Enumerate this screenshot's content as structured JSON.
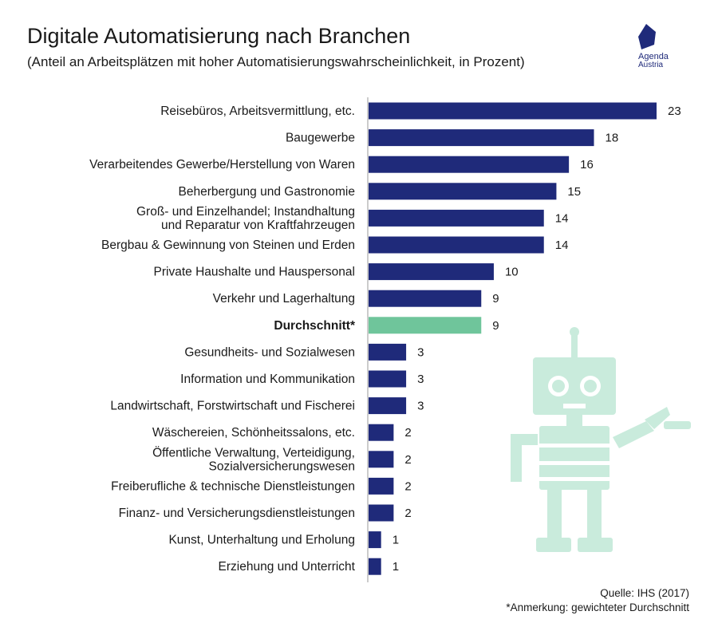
{
  "header": {
    "title": "Digitale Automatisierung nach Branchen",
    "subtitle": "(Anteil an Arbeitsplätzen mit hoher Automatisierungswahrscheinlichkeit, in Prozent)"
  },
  "logo": {
    "line1": "Agenda",
    "line2": "Austria",
    "icon": "agenda-austria-logo"
  },
  "footer": {
    "source": "Quelle: IHS (2017)",
    "note": "*Anmerkung: gewichteter Durchschnitt"
  },
  "decoration": {
    "icon": "robot-illustration",
    "color": "#c9ebdc"
  },
  "colors": {
    "bar": "#1f2a7a",
    "highlight": "#6fc59b",
    "axis": "#999999"
  },
  "chart_data": {
    "type": "bar",
    "orientation": "horizontal",
    "categories": [
      [
        "Reisebüros, Arbeitsvermittlung, etc."
      ],
      [
        "Baugewerbe"
      ],
      [
        "Verarbeitendes Gewerbe/Herstellung von Waren"
      ],
      [
        "Beherbergung und Gastronomie"
      ],
      [
        "Groß- und Einzelhandel; Instandhaltung",
        "und Reparatur von Kraftfahrzeugen"
      ],
      [
        "Bergbau & Gewinnung von Steinen und Erden"
      ],
      [
        "Private Haushalte und Hauspersonal"
      ],
      [
        "Verkehr und Lagerhaltung"
      ],
      [
        "Durchschnitt*"
      ],
      [
        "Gesundheits- und Sozialwesen"
      ],
      [
        "Information und Kommunikation"
      ],
      [
        "Landwirtschaft, Forstwirtschaft und Fischerei"
      ],
      [
        "Wäschereien, Schönheitssalons, etc."
      ],
      [
        "Öffentliche Verwaltung, Verteidigung,",
        "Sozialversicherungswesen"
      ],
      [
        "Freiberufliche & technische Dienstleistungen"
      ],
      [
        "Finanz- und Versicherungsdienstleistungen"
      ],
      [
        "Kunst, Unterhaltung und Erholung"
      ],
      [
        "Erziehung und Unterricht"
      ]
    ],
    "values": [
      23,
      18,
      16,
      15,
      14,
      14,
      10,
      9,
      9,
      3,
      3,
      3,
      2,
      2,
      2,
      2,
      1,
      1
    ],
    "highlight_index": 8,
    "data_labels": [
      "23",
      "18",
      "16",
      "15",
      "14",
      "14",
      "10",
      "9",
      "9",
      "3",
      "3",
      "3",
      "2",
      "2",
      "2",
      "2",
      "1",
      "1"
    ],
    "xlim": [
      0,
      23
    ],
    "grid": false,
    "legend": "none"
  }
}
